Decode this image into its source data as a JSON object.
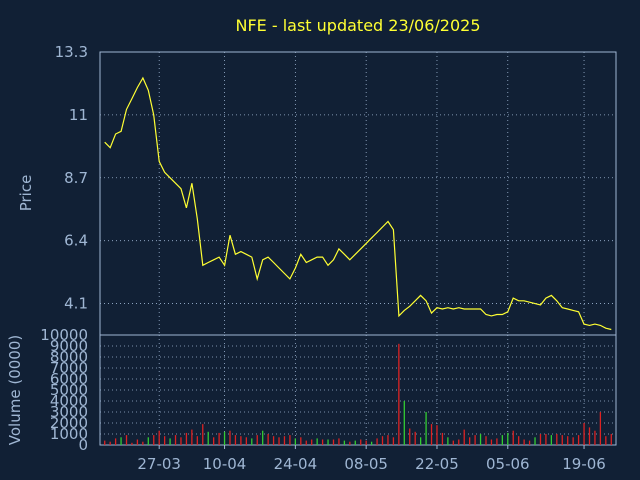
{
  "colors": {
    "background": "#112035",
    "axis": "#9fb6d3",
    "price_line": "#ffff33",
    "volume_up": "#33cc33",
    "volume_down": "#dd2222"
  },
  "chart_data": [
    {
      "type": "line",
      "title": "NFE - last updated 23/06/2025",
      "ylabel": "Price",
      "ylim": [
        2.95,
        13.3
      ],
      "yticks": [
        "4.1",
        "6.4",
        "8.7",
        "11",
        "13.3"
      ],
      "ytick_values": [
        4.1,
        6.4,
        8.7,
        11,
        13.3
      ],
      "grid": true,
      "series": [
        {
          "values": [
            10,
            9.8,
            10.3,
            10.4,
            11.2,
            11.6,
            12,
            12.35,
            11.9,
            11,
            9.3,
            8.9,
            8.7,
            8.5,
            8.3,
            7.6,
            8.5,
            7.2,
            5.5,
            5.6,
            5.7,
            5.8,
            5.5,
            6.6,
            5.9,
            6,
            5.9,
            5.8,
            5,
            5.7,
            5.8,
            5.6,
            5.4,
            5.2,
            5,
            5.4,
            5.9,
            5.6,
            5.7,
            5.8,
            5.8,
            5.5,
            5.7,
            6.1,
            5.9,
            5.7,
            5.9,
            6.1,
            6.3,
            6.5,
            6.7,
            6.9,
            7.1,
            6.8,
            3.65,
            3.85,
            4,
            4.2,
            4.4,
            4.2,
            3.75,
            3.95,
            3.9,
            3.95,
            3.9,
            3.95,
            3.9,
            3.9,
            3.9,
            3.9,
            3.7,
            3.65,
            3.7,
            3.7,
            3.8,
            4.3,
            4.2,
            4.2,
            4.15,
            4.1,
            4.05,
            4.3,
            4.4,
            4.2,
            3.95,
            3.9,
            3.85,
            3.8,
            3.35,
            3.3,
            3.35,
            3.3,
            3.2,
            3.15
          ]
        }
      ]
    },
    {
      "type": "bar",
      "ylabel": "Volume (0000)",
      "ylim": [
        0,
        10000
      ],
      "yticks": [
        "0",
        "1000",
        "2000",
        "3000",
        "4000",
        "5000",
        "6000",
        "7000",
        "8000",
        "9000",
        "10000"
      ],
      "ytick_values": [
        0,
        1000,
        2000,
        3000,
        4000,
        5000,
        6000,
        7000,
        8000,
        9000,
        10000
      ],
      "x_tick_labels": [
        "27-03",
        "10-04",
        "24-04",
        "08-05",
        "22-05",
        "05-06",
        "19-06"
      ],
      "x_tick_index": [
        10,
        22,
        35,
        48,
        61,
        74,
        88
      ],
      "grid": true,
      "series": [
        {
          "name_hidden": "",
          "values": [
            400,
            300,
            600,
            700,
            900,
            200,
            500,
            300,
            700,
            900,
            1300,
            800,
            600,
            900,
            700,
            1100,
            1400,
            800,
            1900,
            1200,
            700,
            1100,
            1200,
            1300,
            900,
            800,
            700,
            600,
            900,
            1300,
            1000,
            800,
            700,
            800,
            900,
            600,
            700,
            400,
            500,
            600,
            500,
            500,
            500,
            600,
            400,
            300,
            400,
            500,
            400,
            300,
            600,
            800,
            900,
            700,
            9200,
            4000,
            1500,
            1200,
            700,
            3000,
            1900,
            1800,
            1100,
            700,
            400,
            500,
            1400,
            700,
            900,
            1000,
            800,
            500,
            600,
            900,
            1100,
            1300,
            800,
            500,
            400,
            700,
            1000,
            1000,
            900,
            1000,
            900,
            800,
            700,
            900,
            2000,
            1600,
            1300,
            3000,
            800,
            1000
          ],
          "up": [
            false,
            false,
            false,
            true,
            false,
            false,
            false,
            false,
            true,
            false,
            false,
            false,
            true,
            false,
            false,
            false,
            false,
            false,
            false,
            true,
            false,
            false,
            true,
            false,
            false,
            false,
            false,
            true,
            false,
            true,
            false,
            false,
            false,
            false,
            false,
            true,
            false,
            false,
            false,
            true,
            false,
            true,
            false,
            false,
            true,
            false,
            true,
            false,
            false,
            true,
            false,
            false,
            false,
            false,
            false,
            true,
            false,
            false,
            true,
            true,
            false,
            false,
            false,
            true,
            false,
            false,
            false,
            false,
            false,
            true,
            false,
            false,
            false,
            true,
            true,
            false,
            false,
            false,
            false,
            true,
            false,
            false,
            true,
            false,
            false,
            false,
            false,
            false,
            false,
            false,
            false,
            false,
            false,
            false
          ]
        }
      ]
    }
  ]
}
